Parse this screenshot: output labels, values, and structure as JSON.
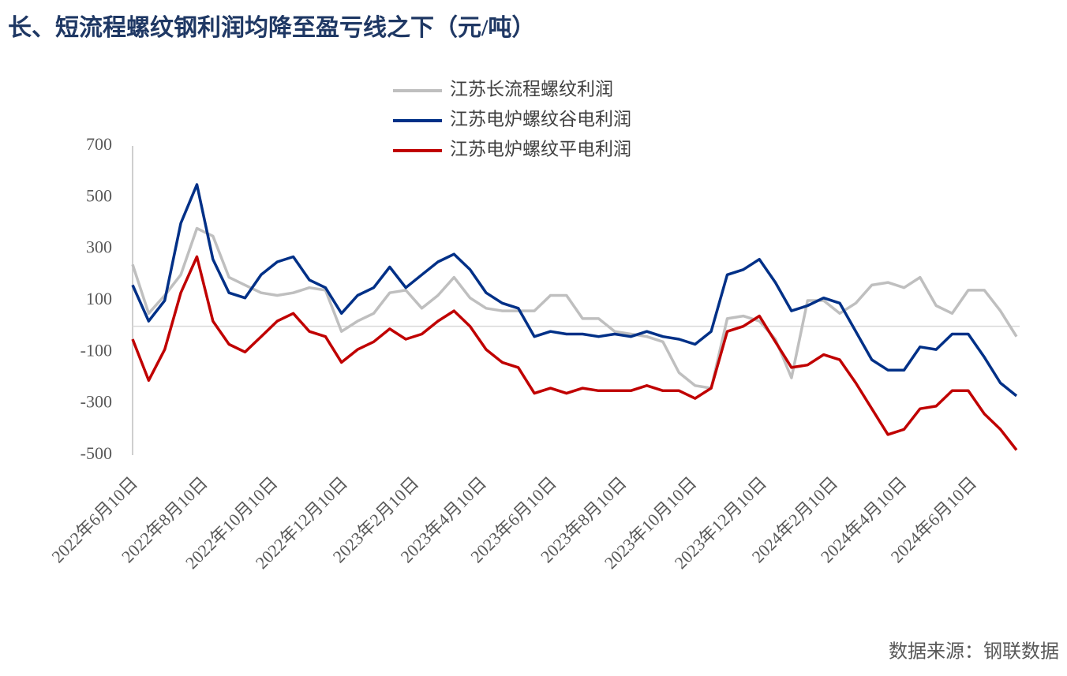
{
  "chart_data": {
    "type": "line",
    "title": "长、短流程螺纹钢利润均降至盈亏线之下（元/吨）",
    "source": "数据来源：钢联数据",
    "x": [
      "2022-06-10",
      "2022-06-24",
      "2022-07-08",
      "2022-07-22",
      "2022-08-05",
      "2022-08-19",
      "2022-09-02",
      "2022-09-16",
      "2022-09-30",
      "2022-10-14",
      "2022-10-28",
      "2022-11-11",
      "2022-11-25",
      "2022-12-09",
      "2022-12-23",
      "2023-01-06",
      "2023-01-20",
      "2023-02-03",
      "2023-02-17",
      "2023-03-03",
      "2023-03-17",
      "2023-03-31",
      "2023-04-14",
      "2023-04-28",
      "2023-05-12",
      "2023-05-26",
      "2023-06-09",
      "2023-06-23",
      "2023-07-07",
      "2023-07-21",
      "2023-08-04",
      "2023-08-18",
      "2023-09-01",
      "2023-09-15",
      "2023-09-29",
      "2023-10-13",
      "2023-10-27",
      "2023-11-10",
      "2023-11-24",
      "2023-12-08",
      "2023-12-22",
      "2024-01-05",
      "2024-01-19",
      "2024-02-02",
      "2024-02-16",
      "2024-03-01",
      "2024-03-15",
      "2024-03-29",
      "2024-04-12",
      "2024-04-26",
      "2024-05-10",
      "2024-05-24",
      "2024-06-07",
      "2024-06-21",
      "2024-07-05",
      "2024-07-19"
    ],
    "xlim": [
      "2022-06-10",
      "2024-07-19"
    ],
    "xticks": [
      {
        "value": "2022-06-10",
        "label": "2022年6月10日"
      },
      {
        "value": "2022-08-10",
        "label": "2022年8月10日"
      },
      {
        "value": "2022-10-10",
        "label": "2022年10月10日"
      },
      {
        "value": "2022-12-10",
        "label": "2022年12月10日"
      },
      {
        "value": "2023-02-10",
        "label": "2023年2月10日"
      },
      {
        "value": "2023-04-10",
        "label": "2023年4月10日"
      },
      {
        "value": "2023-06-10",
        "label": "2023年6月10日"
      },
      {
        "value": "2023-08-10",
        "label": "2023年8月10日"
      },
      {
        "value": "2023-10-10",
        "label": "2023年10月10日"
      },
      {
        "value": "2023-12-10",
        "label": "2023年12月10日"
      },
      {
        "value": "2024-02-10",
        "label": "2024年2月10日"
      },
      {
        "value": "2024-04-10",
        "label": "2024年4月10日"
      },
      {
        "value": "2024-06-10",
        "label": "2024年6月10日"
      }
    ],
    "ylim": [
      -500,
      700
    ],
    "yticks": [
      -500,
      -300,
      -100,
      100,
      300,
      500,
      700
    ],
    "series": [
      {
        "name": "江苏长流程螺纹利润",
        "color": "#bfbfbf",
        "values": [
          240,
          50,
          120,
          200,
          380,
          350,
          190,
          160,
          130,
          120,
          130,
          150,
          140,
          -20,
          20,
          50,
          130,
          140,
          70,
          120,
          190,
          110,
          70,
          60,
          60,
          60,
          120,
          120,
          30,
          30,
          -20,
          -30,
          -40,
          -60,
          -180,
          -230,
          -240,
          30,
          40,
          20,
          -50,
          -200,
          100,
          100,
          50,
          90,
          160,
          170,
          150,
          190,
          80,
          50,
          140,
          140,
          60,
          -40
        ]
      },
      {
        "name": "江苏电炉螺纹谷电利润",
        "color": "#003087",
        "values": [
          160,
          20,
          100,
          400,
          550,
          260,
          130,
          110,
          200,
          250,
          270,
          180,
          150,
          50,
          120,
          150,
          230,
          150,
          200,
          250,
          280,
          220,
          130,
          90,
          70,
          -40,
          -20,
          -30,
          -30,
          -40,
          -30,
          -40,
          -20,
          -40,
          -50,
          -70,
          -20,
          200,
          220,
          260,
          170,
          60,
          80,
          110,
          90,
          -20,
          -130,
          -170,
          -170,
          -80,
          -90,
          -30,
          -30,
          -120,
          -220,
          -270
        ]
      },
      {
        "name": "江苏电炉螺纹平电利润",
        "color": "#c00000",
        "values": [
          -50,
          -210,
          -90,
          130,
          270,
          20,
          -70,
          -100,
          -40,
          20,
          50,
          -20,
          -40,
          -140,
          -90,
          -60,
          -10,
          -50,
          -30,
          20,
          60,
          0,
          -90,
          -140,
          -160,
          -260,
          -240,
          -260,
          -240,
          -250,
          -250,
          -250,
          -230,
          -250,
          -250,
          -280,
          -240,
          -20,
          0,
          40,
          -60,
          -160,
          -150,
          -110,
          -130,
          -220,
          -320,
          -420,
          -400,
          -320,
          -310,
          -250,
          -250,
          -340,
          -400,
          -480
        ]
      }
    ]
  }
}
